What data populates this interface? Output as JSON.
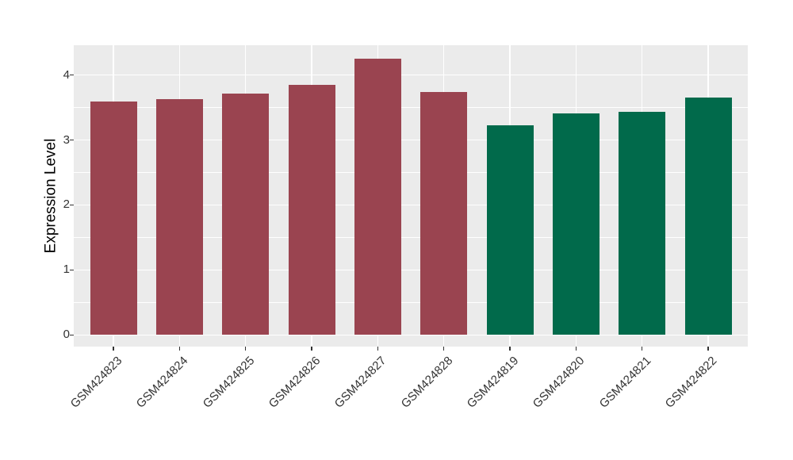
{
  "chart_data": {
    "type": "bar",
    "title": "",
    "xlabel": "",
    "ylabel": "Expression Level",
    "categories": [
      "GSM424823",
      "GSM424824",
      "GSM424825",
      "GSM424826",
      "GSM424827",
      "GSM424828",
      "GSM424819",
      "GSM424820",
      "GSM424821",
      "GSM424822"
    ],
    "values": [
      3.59,
      3.63,
      3.71,
      3.85,
      4.25,
      3.74,
      3.23,
      3.41,
      3.44,
      3.65
    ],
    "bar_groups": [
      {
        "color": "#9A4450",
        "start": 0,
        "count": 6
      },
      {
        "color": "#016A4B",
        "start": 6,
        "count": 4
      }
    ],
    "yticks": [
      0,
      1,
      2,
      3,
      4
    ],
    "ylim": [
      -0.18,
      4.46
    ],
    "grid": {
      "horizontal": "major+minor",
      "vertical": "major"
    },
    "legend": "none",
    "x_tick_rotation_deg": 45
  },
  "style": {
    "figure_background": "#FFFFFF",
    "panel_background": "#EBEBEB",
    "gridline_color": "#FFFFFF",
    "axis_text_color": "#333333",
    "tick_mark_color": "#333333"
  }
}
